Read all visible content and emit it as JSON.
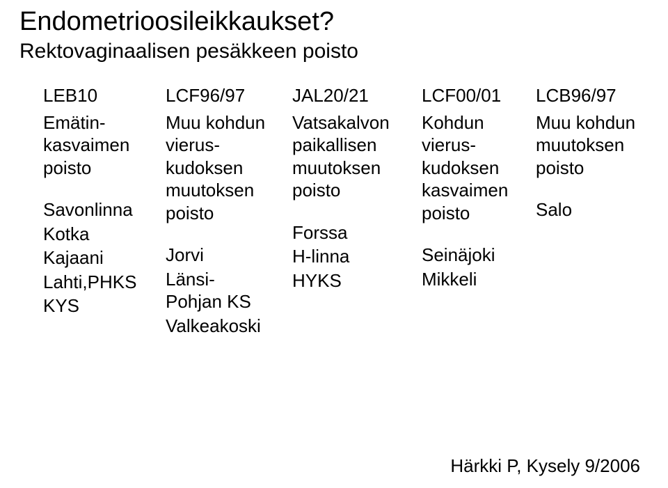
{
  "title": "Endometrioosileikkaukset?",
  "subtitle": "Rektovaginaalisen pesäkkeen poisto",
  "columns": [
    {
      "code": "LEB10",
      "desc": "Emätin-\nkasvaimen\npoisto",
      "hospitals": [
        "Savonlinna",
        "Kotka",
        "Kajaani",
        "Lahti,PHKS",
        "KYS"
      ]
    },
    {
      "code": "LCF96/97",
      "desc": "Muu kohdun\nvierus-\nkudoksen\nmuutoksen\npoisto",
      "hospitals": [
        "Jorvi",
        "Länsi-\nPohjan KS",
        "Valkeakoski"
      ]
    },
    {
      "code": "JAL20/21",
      "desc": "Vatsakalvon\npaikallisen\nmuutoksen\npoisto",
      "hospitals": [
        "Forssa",
        "H-linna",
        "HYKS"
      ]
    },
    {
      "code": "LCF00/01",
      "desc": "Kohdun\nvierus-\nkudoksen\nkasvaimen\npoisto",
      "hospitals": [
        "Seinäjoki",
        "Mikkeli"
      ]
    },
    {
      "code": "LCB96/97",
      "desc": "Muu kohdun\nmuutoksen\npoisto",
      "hospitals": [
        "Salo"
      ]
    }
  ],
  "footer": "Härkki P, Kysely 9/2006",
  "colors": {
    "background": "#ffffff",
    "text": "#000000"
  },
  "fontsize": {
    "title": 38,
    "subtitle": 30,
    "body": 26,
    "footer": 26
  }
}
